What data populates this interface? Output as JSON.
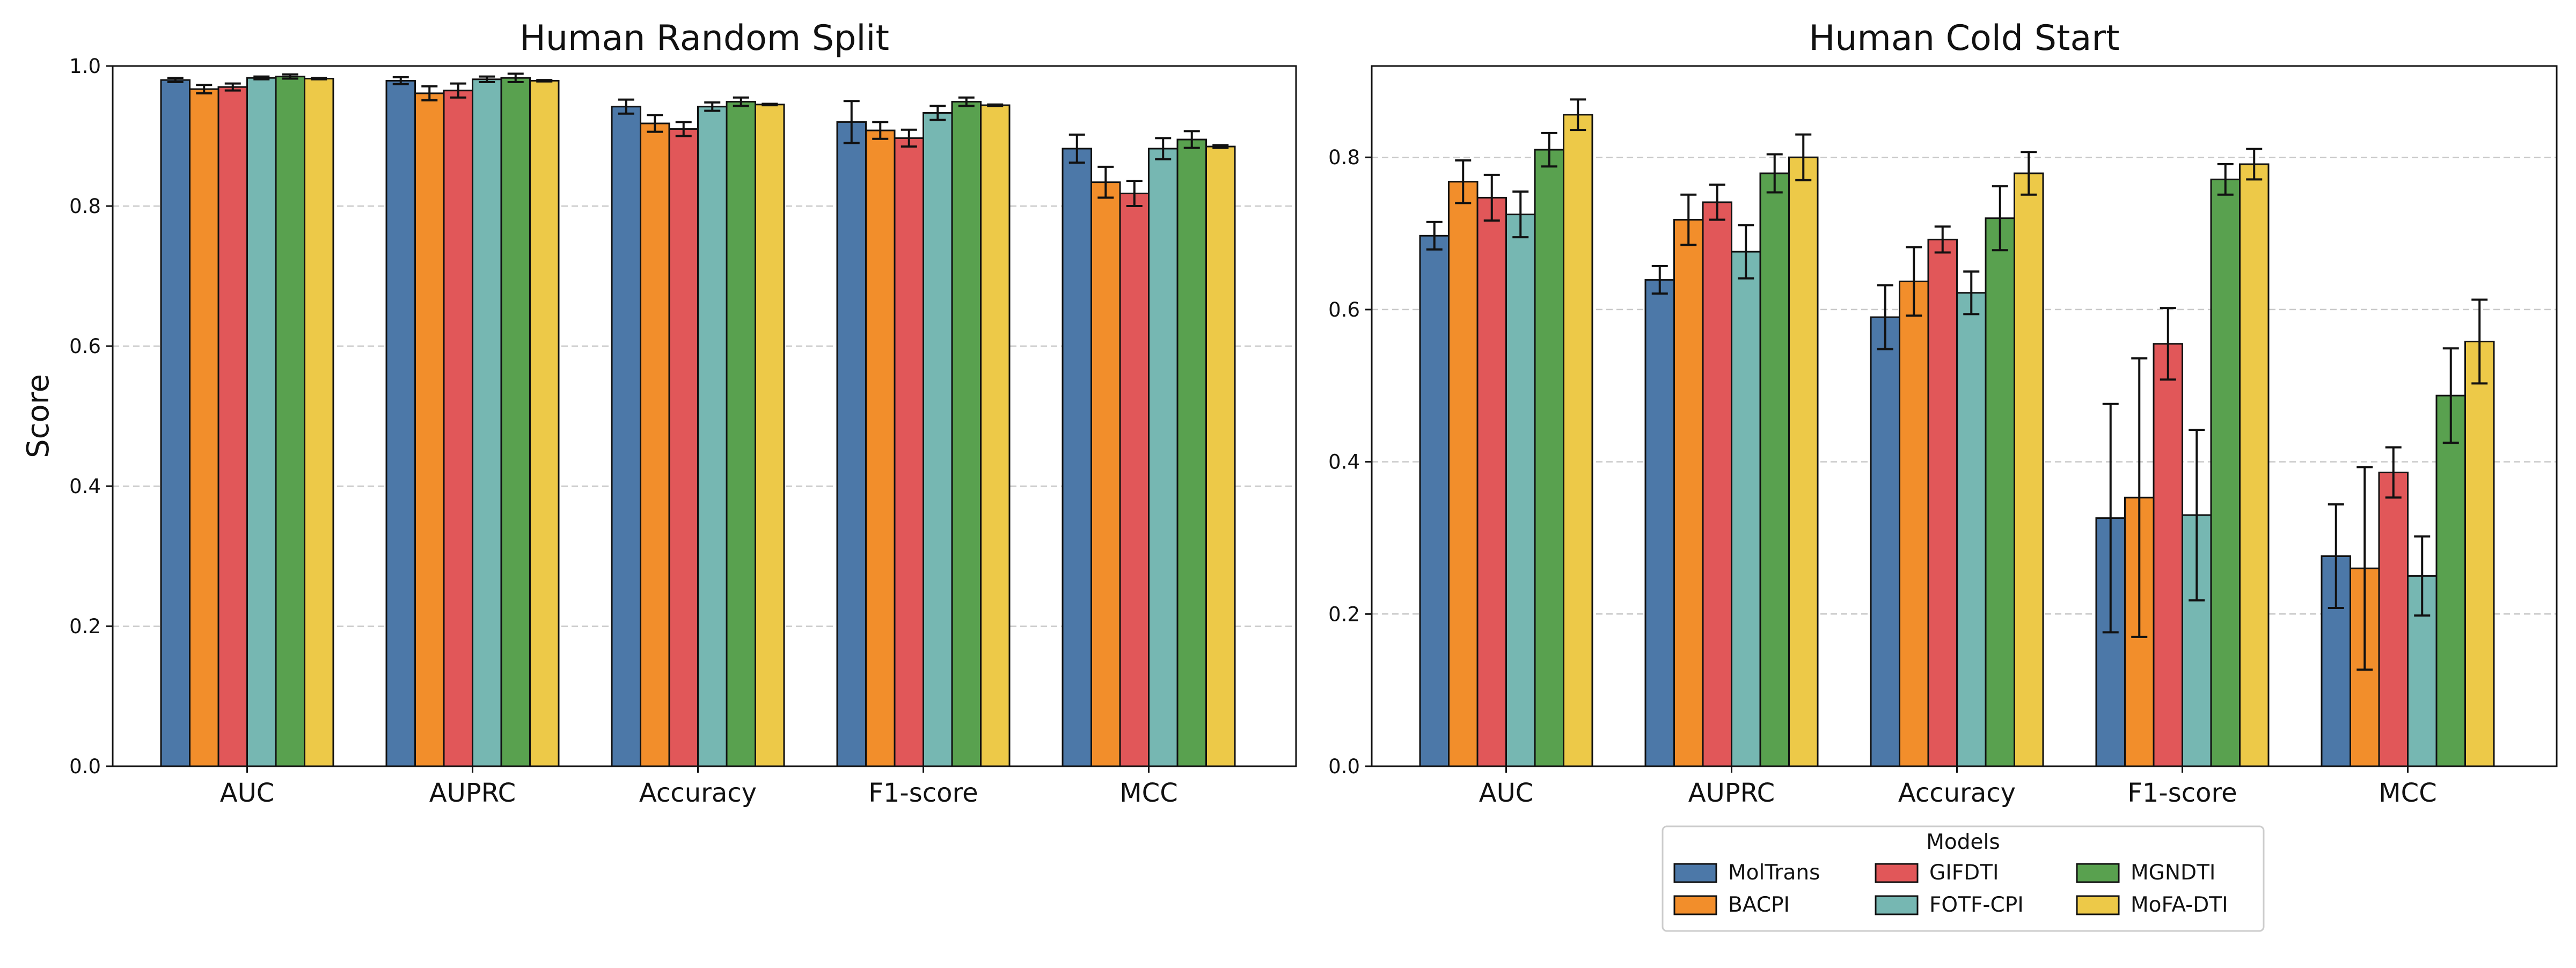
{
  "legend": {
    "title": "Models",
    "placement": "below right panel",
    "items": [
      {
        "name": "MolTrans",
        "color": "#4C78A8"
      },
      {
        "name": "BACPI",
        "color": "#F28E2B"
      },
      {
        "name": "GIFDTI",
        "color": "#E15759"
      },
      {
        "name": "FOTF-CPI",
        "color": "#76B7B2"
      },
      {
        "name": "MGNDTI",
        "color": "#59A14F"
      },
      {
        "name": "MoFA-DTI",
        "color": "#EDC948"
      }
    ]
  },
  "chart_data": [
    {
      "type": "bar",
      "title": "Human Random Split",
      "xlabel": "",
      "ylabel": "Score",
      "ylim": [
        0,
        1.0
      ],
      "yticks": [
        "0.0",
        "0.2",
        "0.4",
        "0.6",
        "0.8",
        "1.0"
      ],
      "grid": "y dashed",
      "categories": [
        "AUC",
        "AUPRC",
        "Accuracy",
        "F1-score",
        "MCC"
      ],
      "series": [
        {
          "name": "MolTrans",
          "values": [
            0.98,
            0.979,
            0.942,
            0.92,
            0.882
          ],
          "errors": [
            0.003,
            0.005,
            0.01,
            0.03,
            0.02
          ]
        },
        {
          "name": "BACPI",
          "values": [
            0.967,
            0.961,
            0.918,
            0.908,
            0.834
          ],
          "errors": [
            0.006,
            0.01,
            0.012,
            0.012,
            0.022
          ]
        },
        {
          "name": "GIFDTI",
          "values": [
            0.97,
            0.965,
            0.91,
            0.897,
            0.818
          ],
          "errors": [
            0.005,
            0.01,
            0.01,
            0.012,
            0.018
          ]
        },
        {
          "name": "FOTF-CPI",
          "values": [
            0.983,
            0.981,
            0.942,
            0.933,
            0.882
          ],
          "errors": [
            0.002,
            0.004,
            0.006,
            0.01,
            0.015
          ]
        },
        {
          "name": "MGNDTI",
          "values": [
            0.985,
            0.983,
            0.949,
            0.949,
            0.895
          ],
          "errors": [
            0.003,
            0.006,
            0.006,
            0.006,
            0.012
          ]
        },
        {
          "name": "MoFA-DTI",
          "values": [
            0.982,
            0.979,
            0.945,
            0.944,
            0.885
          ],
          "errors": [
            0.001,
            0.001,
            0.001,
            0.001,
            0.002
          ]
        }
      ]
    },
    {
      "type": "bar",
      "title": "Human Cold Start",
      "xlabel": "",
      "ylabel": "",
      "ylim": [
        0,
        0.92
      ],
      "yticks": [
        "0.0",
        "0.2",
        "0.4",
        "0.6",
        "0.8"
      ],
      "grid": "y dashed",
      "categories": [
        "AUC",
        "AUPRC",
        "Accuracy",
        "F1-score",
        "MCC"
      ],
      "series": [
        {
          "name": "MolTrans",
          "values": [
            0.697,
            0.639,
            0.59,
            0.326,
            0.276
          ],
          "errors": [
            0.018,
            0.018,
            0.042,
            0.15,
            0.068
          ]
        },
        {
          "name": "BACPI",
          "values": [
            0.768,
            0.718,
            0.637,
            0.353,
            0.26
          ],
          "errors": [
            0.028,
            0.033,
            0.045,
            0.183,
            0.133
          ]
        },
        {
          "name": "GIFDTI",
          "values": [
            0.747,
            0.741,
            0.692,
            0.555,
            0.386
          ],
          "errors": [
            0.03,
            0.023,
            0.017,
            0.047,
            0.033
          ]
        },
        {
          "name": "FOTF-CPI",
          "values": [
            0.725,
            0.676,
            0.622,
            0.33,
            0.25
          ],
          "errors": [
            0.03,
            0.035,
            0.028,
            0.112,
            0.052
          ]
        },
        {
          "name": "MGNDTI",
          "values": [
            0.81,
            0.779,
            0.72,
            0.771,
            0.487
          ],
          "errors": [
            0.022,
            0.025,
            0.042,
            0.02,
            0.062
          ]
        },
        {
          "name": "MoFA-DTI",
          "values": [
            0.856,
            0.8,
            0.779,
            0.791,
            0.558
          ],
          "errors": [
            0.02,
            0.03,
            0.028,
            0.02,
            0.055
          ]
        }
      ]
    }
  ]
}
